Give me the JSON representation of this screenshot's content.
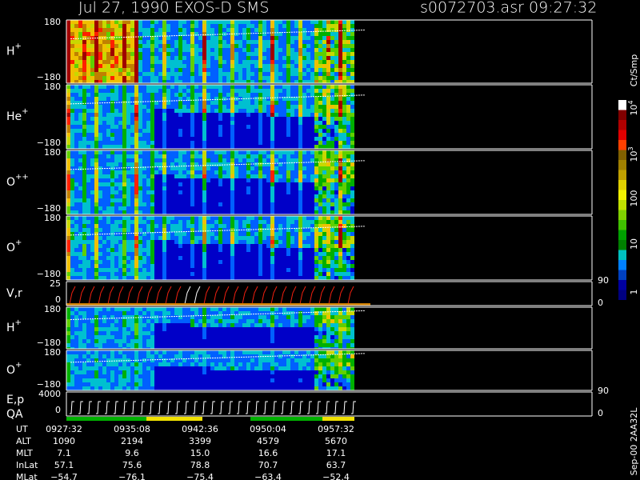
{
  "header": {
    "title": "Jul 27, 1990   EXOS-D SMS",
    "file": "s0072703.asr  09:27:32"
  },
  "panels": [
    {
      "label": "H",
      "charge": "+",
      "top": "180",
      "bottom": "−180"
    },
    {
      "label": "He",
      "charge": "+",
      "top": "180",
      "bottom": "−180"
    },
    {
      "label": "O",
      "charge": "++",
      "top": "180",
      "bottom": "−180"
    },
    {
      "label": "O",
      "charge": "+",
      "top": "180",
      "bottom": "−180"
    },
    {
      "label": "V,r",
      "top": "25",
      "bottom": "0",
      "right_top": "90",
      "right_bottom": "0"
    },
    {
      "label": "H",
      "charge": "+",
      "top": "180",
      "bottom": "−180"
    },
    {
      "label": "O",
      "charge": "+",
      "top": "180",
      "bottom": "−180"
    },
    {
      "label": "E,p",
      "label2": "QA",
      "top": "4000",
      "bottom": "0",
      "right_top": "90",
      "right_bottom": "0"
    }
  ],
  "colorbar": {
    "unit": "Ct/Smp",
    "labels": [
      {
        "base": "10",
        "exp": "4"
      },
      {
        "base": "10",
        "exp": "3"
      },
      {
        "base": "100"
      },
      {
        "base": "10"
      },
      {
        "base": "1"
      }
    ]
  },
  "footer": {
    "row_labels": [
      "UT",
      "ALT",
      "MLT",
      "InLat",
      "MLat"
    ],
    "columns": [
      [
        "0927:32",
        "1090",
        "7.1",
        "57.1",
        "−54.7"
      ],
      [
        "0935:08",
        "2194",
        "9.6",
        "75.6",
        "−76.1"
      ],
      [
        "0942:36",
        "3399",
        "15.0",
        "78.8",
        "−75.4"
      ],
      [
        "0950:04",
        "4579",
        "16.6",
        "70.7",
        "−63.4"
      ],
      [
        "0957:32",
        "5670",
        "17.1",
        "63.7",
        "−52.4"
      ]
    ]
  },
  "stamp": "Sep-00  2AA32L"
}
